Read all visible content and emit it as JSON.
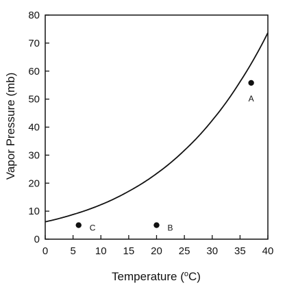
{
  "chart_data": {
    "type": "scatter",
    "title": "",
    "xlabel": "Temperature (",
    "xlabel_sup": "o",
    "xlabel_unit": "C)",
    "ylabel": "Vapor Pressure (mb)",
    "xlim": [
      0,
      40
    ],
    "ylim": [
      0,
      80
    ],
    "x_ticks": [
      "0",
      "5",
      "10",
      "15",
      "20",
      "25",
      "30",
      "35",
      "40"
    ],
    "y_ticks": [
      "0",
      "10",
      "20",
      "30",
      "40",
      "50",
      "60",
      "70",
      "80"
    ],
    "grid": false,
    "series": [
      {
        "type": "line",
        "x": [
          0,
          5,
          10,
          15,
          20,
          25,
          30,
          35,
          40
        ],
        "y": [
          6.2,
          8.8,
          12.3,
          17.1,
          23.4,
          31.7,
          42.4,
          56.2,
          73.7
        ]
      },
      {
        "type": "scatter",
        "points": [
          {
            "x": 37,
            "y": 55.8,
            "label": "A"
          },
          {
            "x": 20,
            "y": 5,
            "label": "B"
          },
          {
            "x": 6,
            "y": 5,
            "label": "C"
          }
        ]
      }
    ]
  }
}
